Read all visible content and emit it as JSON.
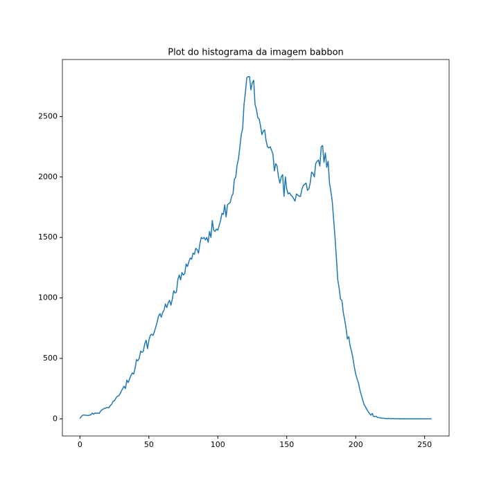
{
  "chart_data": {
    "type": "line",
    "title": "Plot do histograma da imagem babbon",
    "x": [
      0,
      1,
      2,
      3,
      4,
      5,
      6,
      7,
      8,
      9,
      10,
      11,
      12,
      13,
      14,
      15,
      16,
      17,
      18,
      19,
      20,
      21,
      22,
      23,
      24,
      25,
      26,
      27,
      28,
      29,
      30,
      31,
      32,
      33,
      34,
      35,
      36,
      37,
      38,
      39,
      40,
      41,
      42,
      43,
      44,
      45,
      46,
      47,
      48,
      49,
      50,
      51,
      52,
      53,
      54,
      55,
      56,
      57,
      58,
      59,
      60,
      61,
      62,
      63,
      64,
      65,
      66,
      67,
      68,
      69,
      70,
      71,
      72,
      73,
      74,
      75,
      76,
      77,
      78,
      79,
      80,
      81,
      82,
      83,
      84,
      85,
      86,
      87,
      88,
      89,
      90,
      91,
      92,
      93,
      94,
      95,
      96,
      97,
      98,
      99,
      100,
      101,
      102,
      103,
      104,
      105,
      106,
      107,
      108,
      109,
      110,
      111,
      112,
      113,
      114,
      115,
      116,
      117,
      118,
      119,
      120,
      121,
      122,
      123,
      124,
      125,
      126,
      127,
      128,
      129,
      130,
      131,
      132,
      133,
      134,
      135,
      136,
      137,
      138,
      139,
      140,
      141,
      142,
      143,
      144,
      145,
      146,
      147,
      148,
      149,
      150,
      151,
      152,
      153,
      154,
      155,
      156,
      157,
      158,
      159,
      160,
      161,
      162,
      163,
      164,
      165,
      166,
      167,
      168,
      169,
      170,
      171,
      172,
      173,
      174,
      175,
      176,
      177,
      178,
      179,
      180,
      181,
      182,
      183,
      184,
      185,
      186,
      187,
      188,
      189,
      190,
      191,
      192,
      193,
      194,
      195,
      196,
      197,
      198,
      199,
      200,
      201,
      202,
      203,
      204,
      205,
      206,
      207,
      208,
      209,
      210,
      211,
      212,
      213,
      214,
      215,
      216,
      217,
      218,
      219,
      220,
      221,
      222,
      223,
      224,
      225,
      226,
      227,
      228,
      229,
      230,
      231,
      232,
      233,
      234,
      235,
      236,
      237,
      238,
      239,
      240,
      241,
      242,
      243,
      244,
      245,
      246,
      247,
      248,
      249,
      250,
      251,
      252,
      253,
      254,
      255
    ],
    "series": [
      {
        "color": "#1f77b4",
        "values": [
          2,
          20,
          30,
          32,
          30,
          28,
          28,
          30,
          35,
          48,
          38,
          50,
          45,
          48,
          45,
          65,
          75,
          82,
          88,
          90,
          95,
          92,
          110,
          120,
          145,
          150,
          170,
          185,
          190,
          205,
          230,
          250,
          270,
          250,
          320,
          300,
          330,
          360,
          380,
          370,
          420,
          490,
          480,
          500,
          560,
          550,
          560,
          620,
          650,
          580,
          650,
          690,
          700,
          690,
          720,
          760,
          800,
          850,
          870,
          840,
          880,
          900,
          950,
          920,
          960,
          980,
          940,
          990,
          1060,
          1040,
          1050,
          1150,
          1190,
          1150,
          1210,
          1190,
          1200,
          1280,
          1260,
          1300,
          1330,
          1320,
          1370,
          1360,
          1410,
          1400,
          1370,
          1450,
          1500,
          1490,
          1500,
          1480,
          1500,
          1460,
          1550,
          1500,
          1640,
          1560,
          1550,
          1570,
          1560,
          1600,
          1640,
          1700,
          1690,
          1770,
          1670,
          1770,
          1780,
          1790,
          1840,
          1860,
          1980,
          2000,
          2100,
          2150,
          2250,
          2350,
          2400,
          2600,
          2700,
          2820,
          2830,
          2830,
          2720,
          2780,
          2800,
          2600,
          2560,
          2490,
          2480,
          2420,
          2350,
          2380,
          2390,
          2300,
          2250,
          2240,
          2250,
          2220,
          2190,
          2050,
          2110,
          2090,
          2000,
          1950,
          2000,
          2020,
          1840,
          2000,
          1900,
          1860,
          1870,
          1850,
          1840,
          1820,
          1800,
          1860,
          1850,
          1840,
          1840,
          1900,
          1930,
          1940,
          1950,
          1890,
          1900,
          1950,
          2040,
          2030,
          2000,
          2110,
          2130,
          2140,
          2090,
          2250,
          2260,
          2120,
          2200,
          2080,
          2130,
          1950,
          1880,
          1800,
          1650,
          1500,
          1330,
          1150,
          1080,
          990,
          980,
          880,
          820,
          750,
          660,
          680,
          600,
          560,
          500,
          430,
          370,
          330,
          300,
          240,
          200,
          160,
          120,
          100,
          80,
          60,
          45,
          30,
          45,
          20,
          20,
          20,
          10,
          10,
          8,
          6,
          5,
          3,
          3,
          2,
          4,
          2,
          1,
          2,
          1,
          1,
          1,
          0,
          1,
          0,
          0,
          1,
          0,
          0,
          0,
          0,
          0,
          0,
          0,
          0,
          0,
          0,
          0,
          0,
          0,
          0,
          0,
          0,
          0,
          0,
          0,
          0
        ]
      }
    ],
    "xlim": [
      -12.75,
      267.75
    ],
    "xticks": [
      0,
      50,
      100,
      150,
      200,
      250
    ],
    "ylim": [
      -141.5,
      2971.5
    ],
    "yticks": [
      0,
      500,
      1000,
      1500,
      2000,
      2500
    ]
  }
}
